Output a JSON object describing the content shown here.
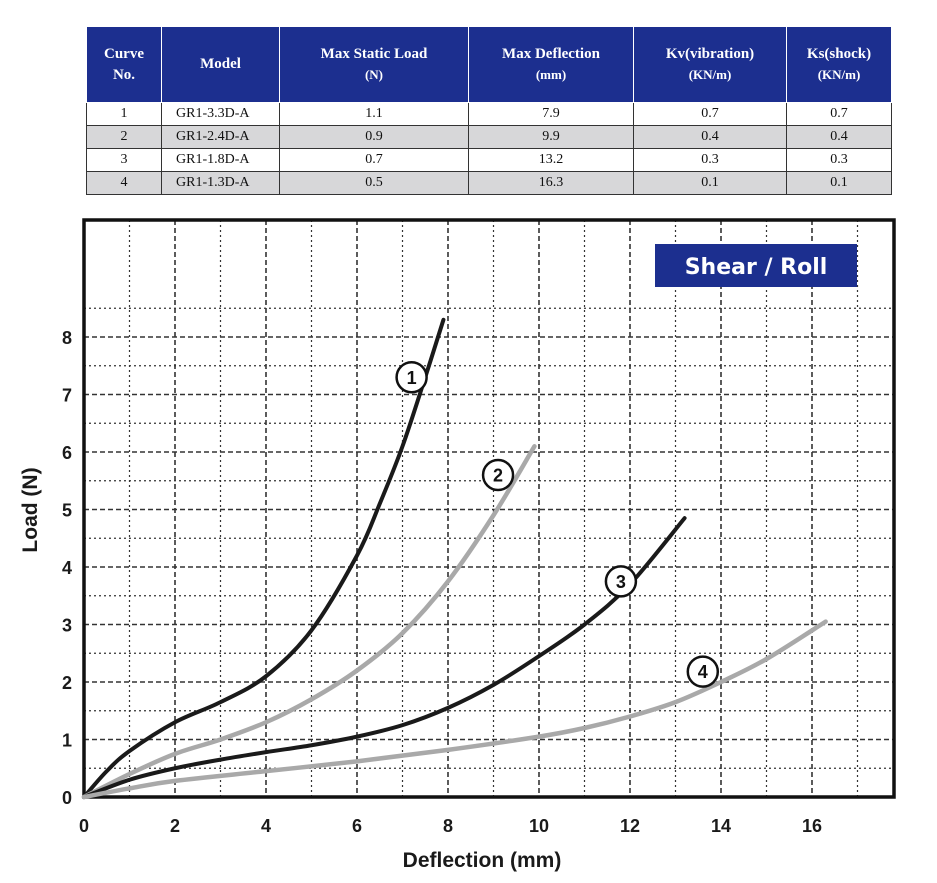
{
  "table": {
    "headers": [
      {
        "label": "Curve",
        "sub": "No."
      },
      {
        "label": "Model",
        "sub": ""
      },
      {
        "label": "Max Static Load",
        "sub": "(N)"
      },
      {
        "label": "Max Deflection",
        "sub": "(mm)"
      },
      {
        "label": "Kv(vibration)",
        "sub": "(KN/m)"
      },
      {
        "label": "Ks(shock)",
        "sub": "(KN/m)"
      }
    ],
    "rows": [
      [
        "1",
        "GR1-3.3D-A",
        "1.1",
        "7.9",
        "0.7",
        "0.7"
      ],
      [
        "2",
        "GR1-2.4D-A",
        "0.9",
        "9.9",
        "0.4",
        "0.4"
      ],
      [
        "3",
        "GR1-1.8D-A",
        "0.7",
        "13.2",
        "0.3",
        "0.3"
      ],
      [
        "4",
        "GR1-1.3D-A",
        "0.5",
        "16.3",
        "0.1",
        "0.1"
      ]
    ]
  },
  "chart_data": {
    "type": "line",
    "badge": "Shear / Roll",
    "xlabel": "Deflection (mm)",
    "ylabel": "Load (N)",
    "xlim": [
      0,
      17.8
    ],
    "ylim": [
      0,
      8.9
    ],
    "xticks": [
      0,
      2,
      4,
      6,
      8,
      10,
      12,
      14,
      16
    ],
    "yticks": [
      0,
      1,
      2,
      3,
      4,
      5,
      6,
      7,
      8
    ],
    "grid": true,
    "colors": {
      "dark": "#1a1a1a",
      "light": "#a9a9a9",
      "badge": "#1c2f8f"
    },
    "series": [
      {
        "name": "1",
        "color": "dark",
        "x": [
          0,
          0.5,
          1,
          2,
          3,
          4,
          5,
          6,
          6.5,
          7,
          7.5,
          7.9
        ],
        "y": [
          0,
          0.45,
          0.8,
          1.3,
          1.65,
          2.1,
          2.9,
          4.2,
          5.1,
          6.1,
          7.3,
          8.3
        ],
        "label_at": [
          7.2,
          7.3
        ]
      },
      {
        "name": "2",
        "color": "light",
        "x": [
          0,
          1,
          2,
          3,
          4,
          5,
          6,
          7,
          8,
          9,
          9.9
        ],
        "y": [
          0,
          0.4,
          0.75,
          1.0,
          1.3,
          1.7,
          2.2,
          2.85,
          3.75,
          4.9,
          6.1
        ],
        "label_at": [
          9.1,
          5.6
        ]
      },
      {
        "name": "3",
        "color": "dark",
        "x": [
          0,
          1,
          2,
          3,
          4,
          5,
          6,
          7,
          8,
          9,
          10,
          11,
          12,
          13.2
        ],
        "y": [
          0,
          0.3,
          0.5,
          0.65,
          0.78,
          0.9,
          1.05,
          1.25,
          1.55,
          1.95,
          2.45,
          3.0,
          3.7,
          4.85
        ],
        "label_at": [
          11.8,
          3.75
        ]
      },
      {
        "name": "4",
        "color": "light",
        "x": [
          0,
          1,
          2,
          4,
          6,
          8,
          10,
          11,
          12,
          13,
          14,
          15,
          16.3
        ],
        "y": [
          0,
          0.15,
          0.28,
          0.45,
          0.62,
          0.82,
          1.05,
          1.2,
          1.4,
          1.65,
          2.0,
          2.4,
          3.05
        ],
        "label_at": [
          13.6,
          2.18
        ]
      }
    ]
  }
}
